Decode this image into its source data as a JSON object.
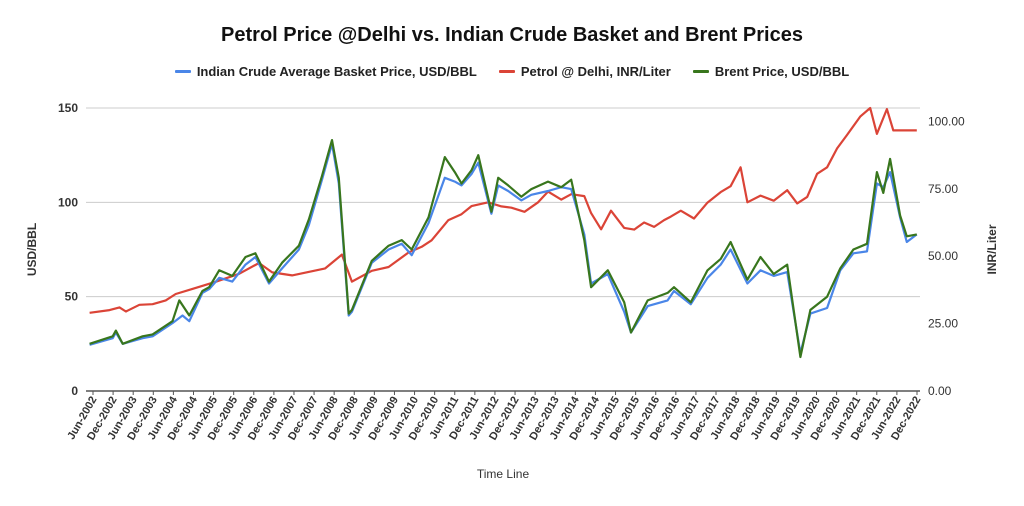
{
  "chart_data": {
    "type": "line",
    "title": "Petrol Price @Delhi vs. Indian Crude Basket and Brent Prices",
    "xlabel": "Time Line",
    "ylabel": "USD/BBL",
    "ylabel_right": "INR/Liter",
    "ylim": [
      0,
      150
    ],
    "ylim_right": [
      0,
      105
    ],
    "yticks": [
      "0",
      "50",
      "100",
      "150"
    ],
    "yticks_right": [
      "0.00",
      "25.00",
      "50.00",
      "75.00",
      "100.00"
    ],
    "grid": true,
    "legend_position": "top",
    "x_tick_labels": [
      "Jun-2002",
      "Dec-2002",
      "Jun-2003",
      "Dec-2003",
      "Jun-2004",
      "Dec-2004",
      "Jun-2005",
      "Dec-2005",
      "Jun-2006",
      "Dec-2006",
      "Jun-2007",
      "Dec-2007",
      "Jun-2008",
      "Dec-2008",
      "Jun-2009",
      "Dec-2009",
      "Jun-2010",
      "Dec-2010",
      "Jun-2011",
      "Dec-2011",
      "Jun-2012",
      "Dec-2012",
      "Jun-2013",
      "Dec-2013",
      "Jun-2014",
      "Dec-2014",
      "Jun-2015",
      "Dec-2015",
      "Jun-2016",
      "Dec-2016",
      "Jun-2017",
      "Dec-2017",
      "Jun-2018",
      "Dec-2018",
      "Jun-2019",
      "Dec-2019",
      "Jun-2020",
      "Dec-2020",
      "Jun-2021",
      "Dec-2021",
      "Jun-2022",
      "Dec-2022"
    ],
    "series": [
      {
        "name": "Indian Crude Average Basket Price, USD/BBL",
        "color": "#4a86e8",
        "axis": "left",
        "points": [
          [
            2002.42,
            24.5
          ],
          [
            2003.0,
            28
          ],
          [
            2003.08,
            31
          ],
          [
            2003.25,
            25
          ],
          [
            2003.75,
            28
          ],
          [
            2004.0,
            29
          ],
          [
            2004.5,
            36
          ],
          [
            2004.75,
            40
          ],
          [
            2004.92,
            37
          ],
          [
            2005.25,
            52
          ],
          [
            2005.42,
            54
          ],
          [
            2005.67,
            60
          ],
          [
            2006.0,
            58
          ],
          [
            2006.33,
            67
          ],
          [
            2006.58,
            71
          ],
          [
            2006.92,
            57
          ],
          [
            2007.25,
            65
          ],
          [
            2007.67,
            75
          ],
          [
            2007.92,
            88
          ],
          [
            2008.25,
            112
          ],
          [
            2008.5,
            131
          ],
          [
            2008.67,
            110
          ],
          [
            2008.92,
            40
          ],
          [
            2009.0,
            42
          ],
          [
            2009.5,
            68
          ],
          [
            2009.92,
            75
          ],
          [
            2010.25,
            78
          ],
          [
            2010.5,
            72
          ],
          [
            2010.92,
            89
          ],
          [
            2011.33,
            113
          ],
          [
            2011.58,
            111
          ],
          [
            2011.75,
            109
          ],
          [
            2012.0,
            115
          ],
          [
            2012.17,
            121
          ],
          [
            2012.5,
            94
          ],
          [
            2012.67,
            109
          ],
          [
            2012.92,
            106
          ],
          [
            2013.25,
            101
          ],
          [
            2013.5,
            104
          ],
          [
            2013.92,
            106
          ],
          [
            2014.25,
            108
          ],
          [
            2014.5,
            107
          ],
          [
            2014.83,
            83
          ],
          [
            2015.0,
            57
          ],
          [
            2015.42,
            62
          ],
          [
            2015.83,
            42
          ],
          [
            2016.0,
            31
          ],
          [
            2016.42,
            45
          ],
          [
            2016.92,
            48
          ],
          [
            2017.08,
            53
          ],
          [
            2017.5,
            46
          ],
          [
            2017.92,
            60
          ],
          [
            2018.25,
            67
          ],
          [
            2018.5,
            75
          ],
          [
            2018.92,
            57
          ],
          [
            2019.25,
            64
          ],
          [
            2019.58,
            61
          ],
          [
            2019.92,
            63
          ],
          [
            2020.25,
            20
          ],
          [
            2020.5,
            41
          ],
          [
            2020.92,
            44
          ],
          [
            2021.25,
            64
          ],
          [
            2021.58,
            73
          ],
          [
            2021.92,
            74
          ],
          [
            2022.17,
            110
          ],
          [
            2022.33,
            108
          ],
          [
            2022.5,
            116
          ],
          [
            2022.75,
            92
          ],
          [
            2022.92,
            79
          ],
          [
            2023.17,
            83
          ]
        ]
      },
      {
        "name": "Petrol @ Delhi, INR/Liter",
        "color": "#db4437",
        "axis": "right",
        "points": [
          [
            2002.42,
            29.0
          ],
          [
            2002.92,
            30.0
          ],
          [
            2003.17,
            31.0
          ],
          [
            2003.33,
            29.5
          ],
          [
            2003.67,
            32.0
          ],
          [
            2004.0,
            32.2
          ],
          [
            2004.33,
            33.6
          ],
          [
            2004.58,
            36.0
          ],
          [
            2005.0,
            37.9
          ],
          [
            2005.58,
            40.5
          ],
          [
            2006.17,
            43.5
          ],
          [
            2006.67,
            47.5
          ],
          [
            2007.0,
            44.0
          ],
          [
            2007.5,
            42.9
          ],
          [
            2008.33,
            45.5
          ],
          [
            2008.75,
            50.6
          ],
          [
            2009.0,
            40.6
          ],
          [
            2009.5,
            44.6
          ],
          [
            2009.92,
            46.0
          ],
          [
            2010.42,
            51.4
          ],
          [
            2010.75,
            53.5
          ],
          [
            2011.0,
            55.9
          ],
          [
            2011.42,
            63.4
          ],
          [
            2011.75,
            65.6
          ],
          [
            2012.0,
            68.6
          ],
          [
            2012.42,
            70.0
          ],
          [
            2012.75,
            68.5
          ],
          [
            2013.0,
            68.0
          ],
          [
            2013.33,
            66.5
          ],
          [
            2013.67,
            70.0
          ],
          [
            2013.92,
            74.0
          ],
          [
            2014.25,
            71.0
          ],
          [
            2014.5,
            73.0
          ],
          [
            2014.83,
            72.3
          ],
          [
            2015.0,
            66.0
          ],
          [
            2015.25,
            60.0
          ],
          [
            2015.5,
            66.9
          ],
          [
            2015.83,
            60.5
          ],
          [
            2016.08,
            59.9
          ],
          [
            2016.33,
            62.5
          ],
          [
            2016.58,
            60.9
          ],
          [
            2016.83,
            63.4
          ],
          [
            2017.0,
            64.7
          ],
          [
            2017.25,
            66.9
          ],
          [
            2017.58,
            64.0
          ],
          [
            2017.92,
            69.9
          ],
          [
            2018.25,
            73.8
          ],
          [
            2018.5,
            76.0
          ],
          [
            2018.75,
            83.0
          ],
          [
            2018.92,
            70.0
          ],
          [
            2019.25,
            72.5
          ],
          [
            2019.58,
            70.6
          ],
          [
            2019.92,
            74.5
          ],
          [
            2020.17,
            69.6
          ],
          [
            2020.42,
            72.0
          ],
          [
            2020.67,
            80.6
          ],
          [
            2020.92,
            83.0
          ],
          [
            2021.17,
            90.0
          ],
          [
            2021.42,
            95.0
          ],
          [
            2021.75,
            101.8
          ],
          [
            2022.0,
            105.0
          ],
          [
            2022.17,
            95.4
          ],
          [
            2022.42,
            104.6
          ],
          [
            2022.58,
            96.7
          ],
          [
            2023.17,
            96.7
          ]
        ]
      },
      {
        "name": "Brent Price, USD/BBL",
        "color": "#38761d",
        "axis": "left",
        "points": [
          [
            2002.42,
            25
          ],
          [
            2003.0,
            29
          ],
          [
            2003.08,
            32
          ],
          [
            2003.25,
            25
          ],
          [
            2003.75,
            29
          ],
          [
            2004.0,
            30
          ],
          [
            2004.5,
            37
          ],
          [
            2004.67,
            48
          ],
          [
            2004.92,
            40
          ],
          [
            2005.25,
            53
          ],
          [
            2005.42,
            55
          ],
          [
            2005.67,
            64
          ],
          [
            2006.0,
            61
          ],
          [
            2006.33,
            71
          ],
          [
            2006.58,
            73
          ],
          [
            2006.92,
            58
          ],
          [
            2007.25,
            68
          ],
          [
            2007.67,
            77
          ],
          [
            2007.92,
            91
          ],
          [
            2008.25,
            114
          ],
          [
            2008.5,
            133
          ],
          [
            2008.67,
            113
          ],
          [
            2008.92,
            41
          ],
          [
            2009.0,
            43
          ],
          [
            2009.5,
            69
          ],
          [
            2009.92,
            77
          ],
          [
            2010.25,
            80
          ],
          [
            2010.5,
            75
          ],
          [
            2010.92,
            92
          ],
          [
            2011.33,
            124
          ],
          [
            2011.58,
            116
          ],
          [
            2011.75,
            110
          ],
          [
            2012.0,
            117
          ],
          [
            2012.17,
            125
          ],
          [
            2012.5,
            95
          ],
          [
            2012.67,
            113
          ],
          [
            2012.92,
            109
          ],
          [
            2013.25,
            103
          ],
          [
            2013.5,
            107
          ],
          [
            2013.92,
            111
          ],
          [
            2014.25,
            108
          ],
          [
            2014.5,
            112
          ],
          [
            2014.83,
            80
          ],
          [
            2015.0,
            55
          ],
          [
            2015.42,
            64
          ],
          [
            2015.83,
            47
          ],
          [
            2016.0,
            31
          ],
          [
            2016.42,
            48
          ],
          [
            2016.92,
            52
          ],
          [
            2017.08,
            55
          ],
          [
            2017.5,
            47
          ],
          [
            2017.92,
            64
          ],
          [
            2018.25,
            70
          ],
          [
            2018.5,
            79
          ],
          [
            2018.92,
            59
          ],
          [
            2019.25,
            71
          ],
          [
            2019.58,
            62
          ],
          [
            2019.92,
            67
          ],
          [
            2020.25,
            18
          ],
          [
            2020.5,
            43
          ],
          [
            2020.92,
            50
          ],
          [
            2021.25,
            65
          ],
          [
            2021.58,
            75
          ],
          [
            2021.92,
            78
          ],
          [
            2022.17,
            116
          ],
          [
            2022.33,
            105
          ],
          [
            2022.5,
            123
          ],
          [
            2022.75,
            93
          ],
          [
            2022.92,
            82
          ],
          [
            2023.17,
            83
          ]
        ]
      }
    ]
  }
}
